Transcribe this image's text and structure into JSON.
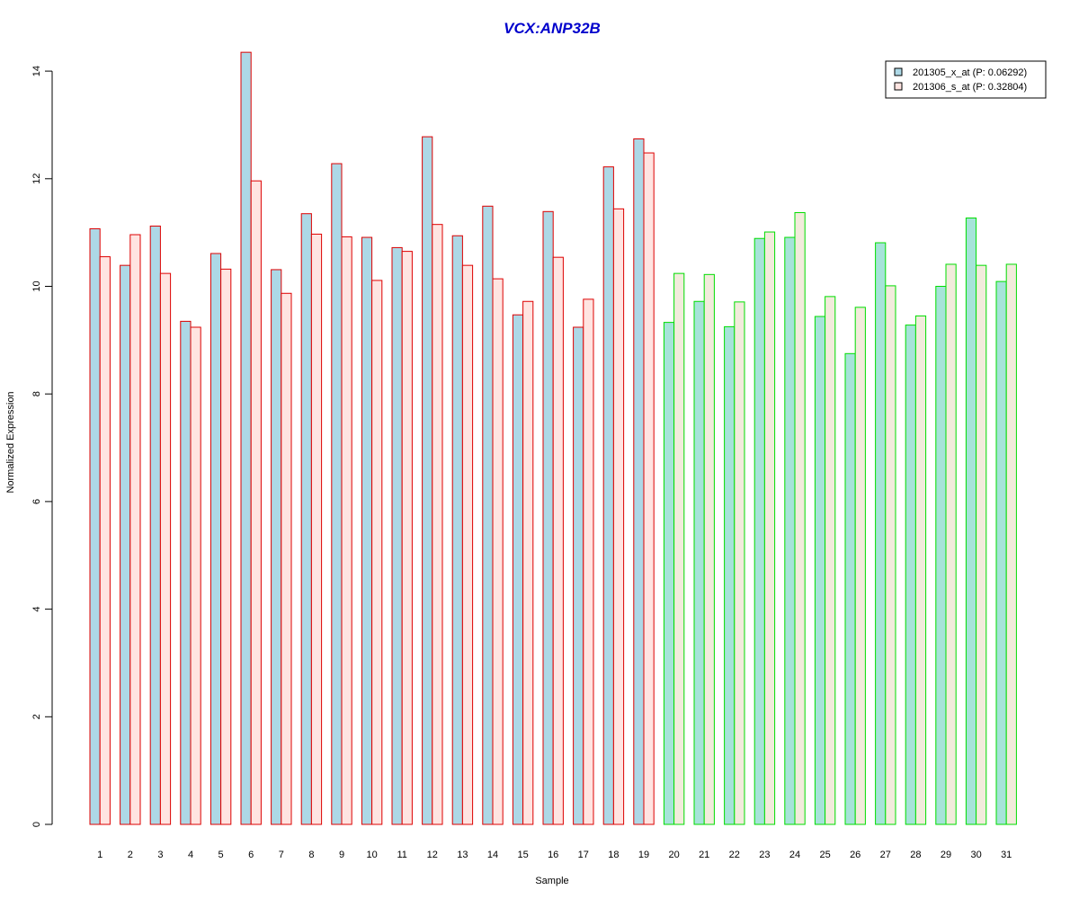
{
  "chart_data": {
    "type": "bar",
    "title": "VCX:ANP32B",
    "xlabel": "Sample",
    "ylabel": "Normalized Expression",
    "ylim": [
      0,
      14.4
    ],
    "yticks": [
      "0",
      "2",
      "4",
      "6",
      "8",
      "10",
      "12",
      "14"
    ],
    "categories": [
      "1",
      "2",
      "3",
      "4",
      "5",
      "6",
      "7",
      "8",
      "9",
      "10",
      "11",
      "12",
      "13",
      "14",
      "15",
      "16",
      "17",
      "18",
      "19",
      "20",
      "21",
      "22",
      "23",
      "24",
      "25",
      "26",
      "27",
      "28",
      "29",
      "30",
      "31"
    ],
    "series": [
      {
        "name": "201305_x_at (P: 0.06292)",
        "values": [
          11.07,
          10.39,
          11.12,
          9.35,
          10.61,
          14.35,
          10.31,
          11.35,
          12.28,
          10.91,
          10.72,
          12.78,
          10.94,
          11.49,
          9.47,
          11.39,
          9.24,
          12.22,
          12.74,
          9.33,
          9.72,
          9.25,
          10.89,
          10.91,
          9.44,
          8.75,
          10.81,
          9.28,
          10.0,
          11.27,
          10.09
        ]
      },
      {
        "name": "201306_s_at (P: 0.32804)",
        "values": [
          10.55,
          10.96,
          10.24,
          9.24,
          10.32,
          11.96,
          9.87,
          10.97,
          10.92,
          10.11,
          10.65,
          11.15,
          10.39,
          10.14,
          9.72,
          10.54,
          9.76,
          11.44,
          12.48,
          10.24,
          10.22,
          9.71,
          11.01,
          11.37,
          9.81,
          9.61,
          10.01,
          9.45,
          10.41,
          10.39,
          10.41
        ]
      }
    ],
    "group_of_sample": [
      "A",
      "A",
      "A",
      "A",
      "A",
      "A",
      "A",
      "A",
      "A",
      "A",
      "A",
      "A",
      "A",
      "A",
      "A",
      "A",
      "A",
      "A",
      "A",
      "B",
      "B",
      "B",
      "B",
      "B",
      "B",
      "B",
      "B",
      "B",
      "B",
      "B",
      "B"
    ],
    "colors": {
      "title": "#0000cc",
      "groupA_border": "#dd0000",
      "groupB_border": "#00dd00",
      "groupA_fill_s1": "#add8e6",
      "groupA_fill_s2": "#ffe4e1",
      "groupB_fill_s1": "#a6e3d9",
      "groupB_fill_s2": "#f2ebdc",
      "legend_fill_s1": "#add8e6",
      "legend_fill_s2": "#ffe4e1"
    },
    "legend": "top-right"
  }
}
